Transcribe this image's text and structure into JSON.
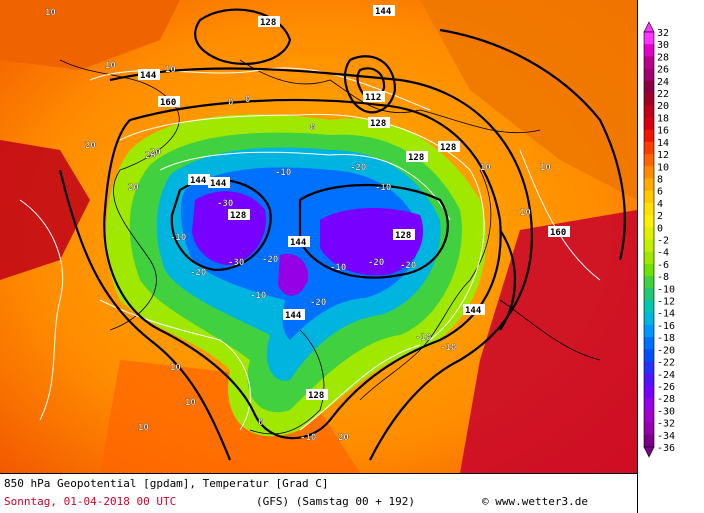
{
  "map": {
    "contour_labels_black": [
      "128",
      "144",
      "144",
      "144",
      "144",
      "144",
      "144",
      "144",
      "160",
      "160",
      "112",
      "128",
      "128",
      "128",
      "128",
      "128",
      "128"
    ],
    "contour_labels_white": [
      "10",
      "10",
      "10",
      "0",
      "0",
      "0",
      "-10",
      "-10",
      "-10",
      "-10",
      "-10",
      "-20",
      "-20",
      "-20",
      "-20",
      "-20",
      "-30",
      "-30",
      "20",
      "20",
      "20",
      "20",
      "10",
      "10",
      "10",
      "0",
      "-10",
      "-20",
      "-10",
      "-10",
      "10",
      "10",
      "10",
      "20"
    ]
  },
  "caption": {
    "line1": "850 hPa Geopotential [gpdam], Temperatur [Grad C]",
    "date": "Sonntag, 01-04-2018  00 UTC",
    "model": "(GFS)  (Samstag 00 + 192)",
    "credit": "© www.wetter3.de"
  },
  "legend": {
    "ticks": [
      "32",
      "30",
      "28",
      "26",
      "24",
      "22",
      "20",
      "18",
      "16",
      "14",
      "12",
      "10",
      "8",
      "6",
      "4",
      "2",
      "0",
      "-2",
      "-4",
      "-6",
      "-8",
      "-10",
      "-12",
      "-14",
      "-16",
      "-18",
      "-20",
      "-22",
      "-24",
      "-26",
      "-28",
      "-30",
      "-32",
      "-34",
      "-36"
    ],
    "colors": [
      "#ff33ff",
      "#e000c8",
      "#b8008c",
      "#a0006e",
      "#8c0046",
      "#a00028",
      "#c00018",
      "#d80010",
      "#f01400",
      "#ff3c00",
      "#ff6400",
      "#ff8c00",
      "#ffaa00",
      "#ffc800",
      "#ffe000",
      "#fff000",
      "#e0f000",
      "#c0f000",
      "#a0e800",
      "#70e000",
      "#40d040",
      "#20c878",
      "#00c8b0",
      "#00b4e0",
      "#0096ff",
      "#0070ff",
      "#0050ff",
      "#2830ff",
      "#5014ff",
      "#7800ff",
      "#9600e6",
      "#a000c8",
      "#9600aa",
      "#7a008c"
    ]
  }
}
